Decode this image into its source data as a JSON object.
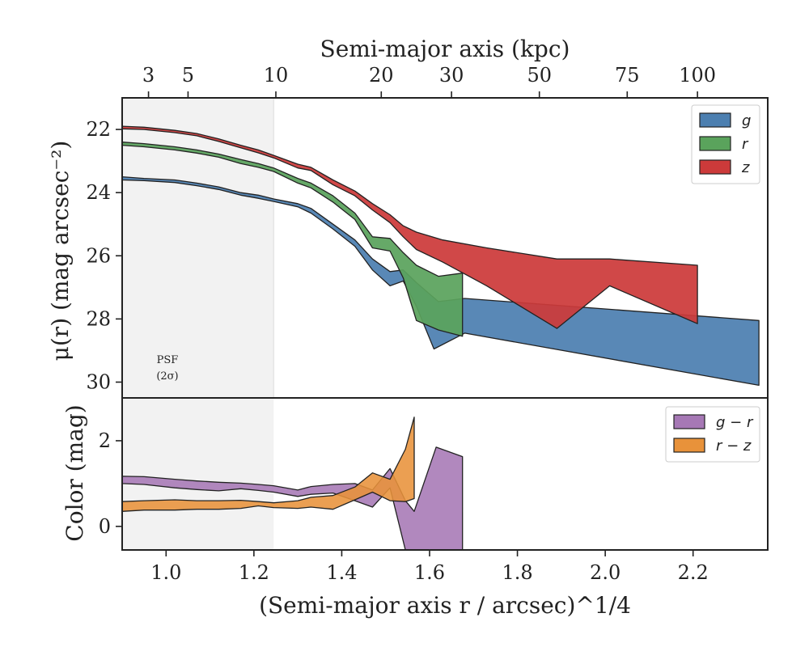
{
  "chart_data": [
    {
      "type": "area",
      "panel": "surface-brightness",
      "ylabel": "μ(r) (mag arcsec⁻²)",
      "xlim": [
        0.9,
        2.37
      ],
      "ylim": [
        30.5,
        21.0
      ],
      "y_inverted": true,
      "grid": false,
      "legend_position": "top-right",
      "yticks": [
        22,
        24,
        26,
        28,
        30
      ],
      "top_xlabel": "Semi-major axis (kpc)",
      "top_ticks": [
        {
          "label": "3",
          "x": 0.96
        },
        {
          "label": "5",
          "x": 1.05
        },
        {
          "label": "10",
          "x": 1.25
        },
        {
          "label": "20",
          "x": 1.49
        },
        {
          "label": "30",
          "x": 1.65
        },
        {
          "label": "50",
          "x": 1.85
        },
        {
          "label": "75",
          "x": 2.05
        },
        {
          "label": "100",
          "x": 2.21
        }
      ],
      "shaded_region": {
        "x": [
          0.9,
          1.245
        ],
        "text_line1": "PSF",
        "text_line2": "(2σ)"
      },
      "series": [
        {
          "name": "g",
          "color": "#4c7fb0",
          "upper": [
            [
              0.9,
              23.5
            ],
            [
              0.95,
              23.55
            ],
            [
              1.02,
              23.6
            ],
            [
              1.07,
              23.7
            ],
            [
              1.12,
              23.82
            ],
            [
              1.17,
              24.0
            ],
            [
              1.21,
              24.08
            ],
            [
              1.245,
              24.2
            ],
            [
              1.3,
              24.35
            ],
            [
              1.33,
              24.5
            ],
            [
              1.38,
              25.0
            ],
            [
              1.43,
              25.5
            ],
            [
              1.47,
              26.1
            ],
            [
              1.51,
              26.5
            ],
            [
              1.54,
              26.45
            ],
            [
              1.57,
              26.85
            ],
            [
              1.62,
              27.45
            ],
            [
              1.68,
              27.35
            ],
            [
              2.35,
              28.05
            ]
          ],
          "lower": [
            [
              0.9,
              23.6
            ],
            [
              0.95,
              23.62
            ],
            [
              1.02,
              23.68
            ],
            [
              1.07,
              23.78
            ],
            [
              1.12,
              23.9
            ],
            [
              1.17,
              24.08
            ],
            [
              1.21,
              24.18
            ],
            [
              1.245,
              24.28
            ],
            [
              1.3,
              24.45
            ],
            [
              1.33,
              24.65
            ],
            [
              1.38,
              25.15
            ],
            [
              1.43,
              25.7
            ],
            [
              1.47,
              26.45
            ],
            [
              1.51,
              26.95
            ],
            [
              1.54,
              26.8
            ],
            [
              1.57,
              27.6
            ],
            [
              1.61,
              28.95
            ],
            [
              1.68,
              28.45
            ],
            [
              2.35,
              30.1
            ]
          ]
        },
        {
          "name": "r",
          "color": "#5aa35c",
          "upper": [
            [
              0.9,
              22.4
            ],
            [
              0.95,
              22.45
            ],
            [
              1.02,
              22.55
            ],
            [
              1.07,
              22.65
            ],
            [
              1.12,
              22.78
            ],
            [
              1.17,
              22.95
            ],
            [
              1.21,
              23.08
            ],
            [
              1.245,
              23.22
            ],
            [
              1.3,
              23.55
            ],
            [
              1.33,
              23.7
            ],
            [
              1.38,
              24.1
            ],
            [
              1.43,
              24.65
            ],
            [
              1.47,
              25.4
            ],
            [
              1.51,
              25.45
            ],
            [
              1.54,
              25.9
            ],
            [
              1.57,
              26.3
            ],
            [
              1.62,
              26.65
            ],
            [
              1.675,
              26.55
            ]
          ],
          "lower": [
            [
              0.9,
              22.5
            ],
            [
              0.95,
              22.55
            ],
            [
              1.02,
              22.65
            ],
            [
              1.07,
              22.75
            ],
            [
              1.12,
              22.88
            ],
            [
              1.17,
              23.08
            ],
            [
              1.21,
              23.2
            ],
            [
              1.245,
              23.33
            ],
            [
              1.3,
              23.7
            ],
            [
              1.33,
              23.85
            ],
            [
              1.38,
              24.3
            ],
            [
              1.43,
              24.85
            ],
            [
              1.47,
              25.75
            ],
            [
              1.51,
              25.85
            ],
            [
              1.54,
              26.7
            ],
            [
              1.57,
              28.05
            ],
            [
              1.62,
              28.35
            ],
            [
              1.675,
              28.55
            ]
          ]
        },
        {
          "name": "z",
          "color": "#cc3a3a",
          "upper": [
            [
              0.9,
              21.9
            ],
            [
              0.95,
              21.93
            ],
            [
              1.02,
              22.03
            ],
            [
              1.07,
              22.13
            ],
            [
              1.12,
              22.3
            ],
            [
              1.17,
              22.5
            ],
            [
              1.21,
              22.65
            ],
            [
              1.245,
              22.82
            ],
            [
              1.3,
              23.1
            ],
            [
              1.33,
              23.2
            ],
            [
              1.38,
              23.6
            ],
            [
              1.43,
              23.95
            ],
            [
              1.47,
              24.35
            ],
            [
              1.51,
              24.7
            ],
            [
              1.54,
              25.05
            ],
            [
              1.57,
              25.25
            ],
            [
              1.63,
              25.5
            ],
            [
              1.73,
              25.75
            ],
            [
              1.89,
              26.1
            ],
            [
              2.01,
              26.1
            ],
            [
              2.21,
              26.3
            ]
          ],
          "lower": [
            [
              0.9,
              21.98
            ],
            [
              0.95,
              22.0
            ],
            [
              1.02,
              22.1
            ],
            [
              1.07,
              22.2
            ],
            [
              1.12,
              22.38
            ],
            [
              1.17,
              22.58
            ],
            [
              1.21,
              22.74
            ],
            [
              1.245,
              22.9
            ],
            [
              1.3,
              23.22
            ],
            [
              1.33,
              23.3
            ],
            [
              1.38,
              23.75
            ],
            [
              1.43,
              24.1
            ],
            [
              1.47,
              24.55
            ],
            [
              1.51,
              24.95
            ],
            [
              1.54,
              25.4
            ],
            [
              1.57,
              25.8
            ],
            [
              1.63,
              26.2
            ],
            [
              1.73,
              26.95
            ],
            [
              1.89,
              28.3
            ],
            [
              2.01,
              26.95
            ],
            [
              2.21,
              28.15
            ]
          ]
        }
      ]
    },
    {
      "type": "area",
      "panel": "color",
      "xlabel": "(Semi-major axis r / arcsec)^1/4",
      "ylabel": "Color (mag)",
      "xlim": [
        0.9,
        2.37
      ],
      "ylim": [
        -0.55,
        3.0
      ],
      "xticks": [
        1.0,
        1.2,
        1.4,
        1.6,
        1.8,
        2.0,
        2.2
      ],
      "xtick_labels": [
        "1.0",
        "1.2",
        "1.4",
        "1.6",
        "1.8",
        "2.0",
        "2.2"
      ],
      "yticks": [
        0,
        2
      ],
      "grid": false,
      "legend_position": "top-right",
      "series": [
        {
          "name": "g − r",
          "color": "#a678b5",
          "upper": [
            [
              0.9,
              1.17
            ],
            [
              0.95,
              1.16
            ],
            [
              1.02,
              1.1
            ],
            [
              1.07,
              1.06
            ],
            [
              1.12,
              1.03
            ],
            [
              1.17,
              1.01
            ],
            [
              1.21,
              0.98
            ],
            [
              1.245,
              0.95
            ],
            [
              1.3,
              0.85
            ],
            [
              1.33,
              0.93
            ],
            [
              1.38,
              0.98
            ],
            [
              1.43,
              1.0
            ],
            [
              1.47,
              0.85
            ],
            [
              1.51,
              1.35
            ],
            [
              1.545,
              0.6
            ],
            [
              1.565,
              0.35
            ],
            [
              1.615,
              1.85
            ],
            [
              1.675,
              1.63
            ],
            [
              1.675,
              -0.55
            ]
          ],
          "lower": [
            [
              0.9,
              1.0
            ],
            [
              0.95,
              0.98
            ],
            [
              1.02,
              0.9
            ],
            [
              1.07,
              0.86
            ],
            [
              1.12,
              0.83
            ],
            [
              1.17,
              0.88
            ],
            [
              1.21,
              0.84
            ],
            [
              1.245,
              0.8
            ],
            [
              1.3,
              0.7
            ],
            [
              1.33,
              0.75
            ],
            [
              1.38,
              0.78
            ],
            [
              1.43,
              0.6
            ],
            [
              1.47,
              0.45
            ],
            [
              1.51,
              0.9
            ],
            [
              1.545,
              -0.55
            ]
          ]
        },
        {
          "name": "r − z",
          "color": "#e8923a",
          "upper": [
            [
              0.9,
              0.58
            ],
            [
              0.95,
              0.6
            ],
            [
              1.02,
              0.62
            ],
            [
              1.07,
              0.6
            ],
            [
              1.12,
              0.6
            ],
            [
              1.17,
              0.61
            ],
            [
              1.21,
              0.58
            ],
            [
              1.245,
              0.55
            ],
            [
              1.3,
              0.6
            ],
            [
              1.33,
              0.68
            ],
            [
              1.38,
              0.72
            ],
            [
              1.43,
              0.92
            ],
            [
              1.47,
              1.25
            ],
            [
              1.51,
              1.1
            ],
            [
              1.545,
              1.8
            ],
            [
              1.565,
              2.55
            ]
          ],
          "lower": [
            [
              0.9,
              0.35
            ],
            [
              0.95,
              0.38
            ],
            [
              1.02,
              0.38
            ],
            [
              1.07,
              0.4
            ],
            [
              1.12,
              0.4
            ],
            [
              1.17,
              0.42
            ],
            [
              1.21,
              0.48
            ],
            [
              1.245,
              0.44
            ],
            [
              1.3,
              0.42
            ],
            [
              1.33,
              0.45
            ],
            [
              1.38,
              0.4
            ],
            [
              1.43,
              0.62
            ],
            [
              1.47,
              0.8
            ],
            [
              1.51,
              0.6
            ],
            [
              1.545,
              0.58
            ],
            [
              1.565,
              0.65
            ]
          ]
        }
      ]
    }
  ],
  "colors": {
    "frame": "#222222",
    "psf_shade": "#f2f2f2",
    "outline": "#222222",
    "legend_border": "#cccccc"
  }
}
